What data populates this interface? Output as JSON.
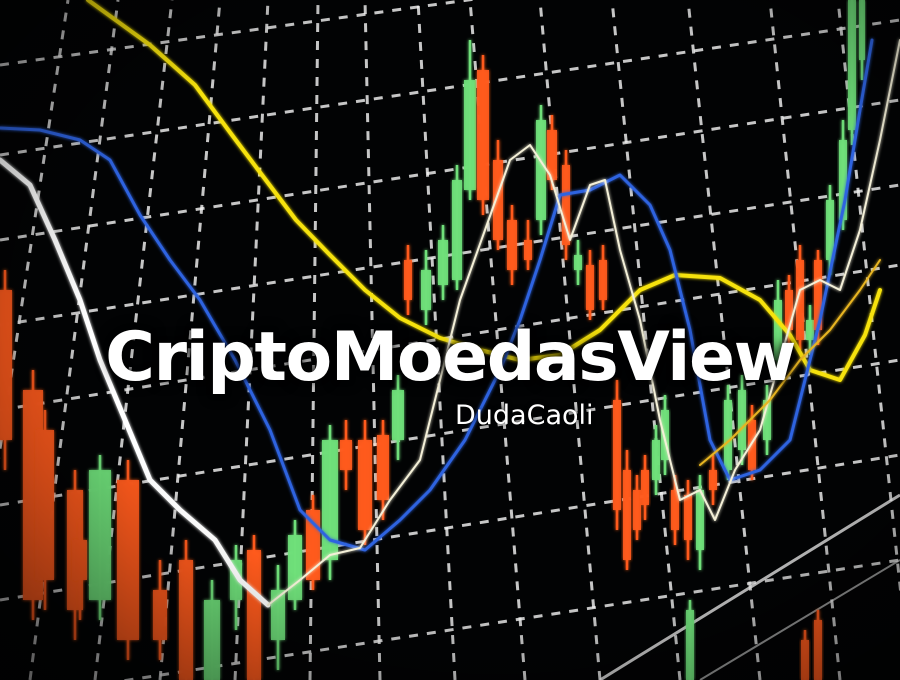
{
  "overlay": {
    "title": "CriptoMoedasView",
    "subtitle": "DudaCaoli"
  },
  "colors": {
    "background": "#020304",
    "grid": "#f2f2f2",
    "rising_candle": "#6fe07a",
    "falling_candle": "#ff5a1a",
    "line_yellow": "#f6e20a",
    "line_blue": "#2f63e0",
    "line_white": "#ffffff",
    "line_white_thin": "#f4f0d8",
    "line_gold": "#e8b520"
  }
}
